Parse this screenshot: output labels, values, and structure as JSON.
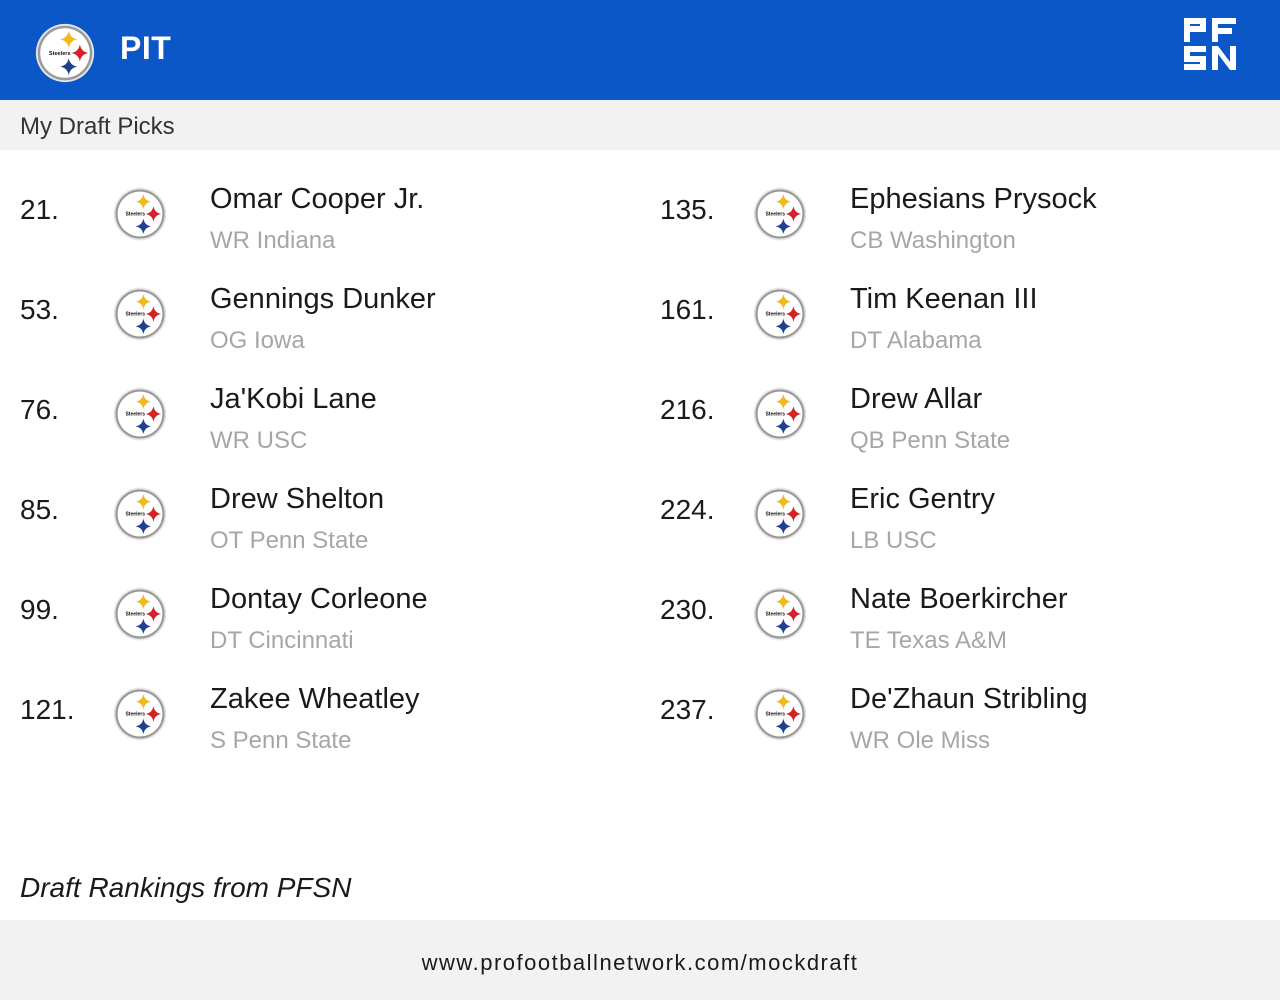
{
  "header": {
    "team_abbr": "PIT",
    "team_logo_icon": "steelers-logo-icon",
    "brand_logo_icon": "pfsn-logo-icon",
    "brand_logo_text": "PFSN",
    "background_color": "#0b57c8"
  },
  "section_title": "My Draft Picks",
  "team_logo_text": "Steelers",
  "picks": [
    {
      "number": "21.",
      "name": "Omar Cooper Jr.",
      "meta": "WR Indiana"
    },
    {
      "number": "53.",
      "name": "Gennings Dunker",
      "meta": "OG Iowa"
    },
    {
      "number": "76.",
      "name": "Ja'Kobi Lane",
      "meta": "WR USC"
    },
    {
      "number": "85.",
      "name": "Drew Shelton",
      "meta": "OT Penn State"
    },
    {
      "number": "99.",
      "name": "Dontay Corleone",
      "meta": "DT Cincinnati"
    },
    {
      "number": "121.",
      "name": "Zakee Wheatley",
      "meta": "S Penn State"
    },
    {
      "number": "135.",
      "name": "Ephesians Prysock",
      "meta": "CB Washington"
    },
    {
      "number": "161.",
      "name": "Tim Keenan III",
      "meta": "DT Alabama"
    },
    {
      "number": "216.",
      "name": "Drew Allar",
      "meta": "QB Penn State"
    },
    {
      "number": "224.",
      "name": "Eric Gentry",
      "meta": "LB USC"
    },
    {
      "number": "230.",
      "name": "Nate Boerkircher",
      "meta": "TE Texas A&M"
    },
    {
      "number": "237.",
      "name": "De'Zhaun Stribling",
      "meta": "WR Ole Miss"
    }
  ],
  "attribution": "Draft Rankings from PFSN",
  "footer_url": "www.profootballnetwork.com/mockdraft",
  "colors": {
    "steelers_yellow": "#f5b71e",
    "steelers_red": "#d81f26",
    "steelers_blue": "#1f3f8f",
    "meta_gray": "#a6a6a6"
  }
}
